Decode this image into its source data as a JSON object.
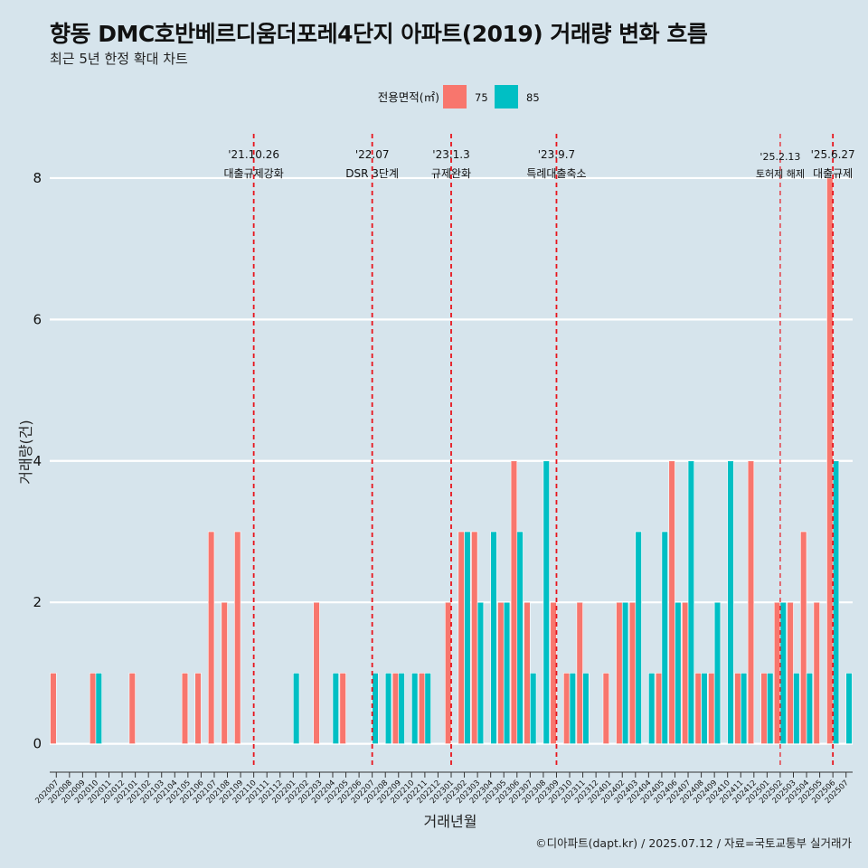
{
  "header": {
    "title": "향동 DMC호반베르디움더포레4단지 아파트(2019) 거래량 변화 흐름",
    "subtitle": "최근 5년 한정 확대 차트"
  },
  "footer": {
    "caption": "©디아파트(dapt.kr) / 2025.07.12 / 자료=국토교통부 실거래가"
  },
  "colors": {
    "series_75": "#f8766d",
    "series_85": "#00bfc4",
    "event_line": "#e8141c",
    "background": "#d6e4ec",
    "grid": "#ffffff"
  },
  "chart_data": {
    "type": "bar",
    "xlabel": "거래년월",
    "ylabel": "거래량(건)",
    "ylim": [
      -0.35,
      8.6
    ],
    "yticks": [
      0,
      2,
      4,
      6,
      8
    ],
    "grid": true,
    "legend": {
      "title": "전용면적(㎡)",
      "placement": "top",
      "entries": [
        "75",
        "85"
      ]
    },
    "categories": [
      "202007",
      "202008",
      "202009",
      "202010",
      "202011",
      "202012",
      "202101",
      "202102",
      "202103",
      "202104",
      "202105",
      "202106",
      "202107",
      "202108",
      "202109",
      "202110",
      "202111",
      "202112",
      "202201",
      "202202",
      "202203",
      "202204",
      "202205",
      "202206",
      "202207",
      "202208",
      "202209",
      "202210",
      "202211",
      "202212",
      "202301",
      "202302",
      "202303",
      "202304",
      "202305",
      "202306",
      "202307",
      "202308",
      "202309",
      "202310",
      "202311",
      "202312",
      "202401",
      "202402",
      "202403",
      "202404",
      "202405",
      "202406",
      "202407",
      "202408",
      "202409",
      "202410",
      "202411",
      "202412",
      "202501",
      "202502",
      "202503",
      "202504",
      "202505",
      "202506",
      "202507"
    ],
    "series": [
      {
        "name": "75",
        "values": [
          1,
          0,
          0,
          1,
          0,
          0,
          1,
          0,
          0,
          0,
          1,
          1,
          3,
          2,
          3,
          0,
          0,
          0,
          0,
          0,
          2,
          0,
          1,
          0,
          0,
          0,
          1,
          0,
          1,
          0,
          2,
          3,
          3,
          0,
          2,
          4,
          2,
          0,
          2,
          1,
          2,
          0,
          1,
          2,
          2,
          0,
          1,
          4,
          2,
          1,
          1,
          0,
          1,
          4,
          1,
          2,
          2,
          3,
          2,
          8,
          0
        ]
      },
      {
        "name": "85",
        "values": [
          0,
          0,
          0,
          1,
          0,
          0,
          0,
          0,
          0,
          0,
          0,
          0,
          0,
          0,
          0,
          0,
          0,
          0,
          1,
          0,
          0,
          1,
          0,
          0,
          1,
          1,
          1,
          1,
          1,
          0,
          0,
          3,
          2,
          3,
          2,
          3,
          1,
          4,
          0,
          1,
          1,
          0,
          0,
          2,
          3,
          1,
          3,
          2,
          4,
          1,
          2,
          4,
          1,
          0,
          1,
          2,
          1,
          1,
          0,
          4,
          1
        ]
      }
    ],
    "events": [
      {
        "x": "202110",
        "date": "'21.10.26",
        "label": "대출규제강화"
      },
      {
        "x": "202207",
        "date": "'22.07",
        "label": "DSR 3단계"
      },
      {
        "x": "202301",
        "date": "'23.1.3",
        "label": "규제완화"
      },
      {
        "x": "202309",
        "date": "'23.9.7",
        "label": "특례대출축소"
      },
      {
        "x": "202502",
        "date": "'25.2.13",
        "label": "토허제 해제"
      },
      {
        "x": "202506",
        "date": "'25.6.27",
        "label": "대출규제"
      }
    ]
  }
}
